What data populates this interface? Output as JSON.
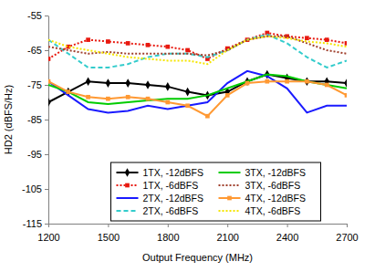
{
  "chart_data": {
    "type": "line",
    "x_label": "Output Frequency (MHz)",
    "y_label": "HD2 (dBFS/Hz)",
    "x": [
      1200,
      1300,
      1400,
      1500,
      1600,
      1700,
      1800,
      1900,
      2000,
      2100,
      2200,
      2300,
      2400,
      2500,
      2600,
      2700
    ],
    "xlim": [
      1200,
      2700
    ],
    "xticks": [
      1200,
      1500,
      1800,
      2100,
      2400,
      2700
    ],
    "ylim": [
      -115,
      -55
    ],
    "yticks": [
      -115,
      -105,
      -95,
      -85,
      -75,
      -65,
      -55
    ],
    "grid": false,
    "legend": "lower center",
    "series": [
      {
        "name": "1TX, -12dBFS",
        "color": "#000000",
        "marker": "diamond",
        "line_style": "solid",
        "values": [
          -80,
          -77,
          -74,
          -74.5,
          -74.5,
          -75,
          -75.5,
          -77,
          -78,
          -77,
          -74,
          -72,
          -73,
          -74,
          -74,
          -74.5
        ]
      },
      {
        "name": "1TX, -6dBFS",
        "color": "#e8190f",
        "marker": "square",
        "line_style": "dotted",
        "values": [
          -67.5,
          -64,
          -62,
          -62.5,
          -63,
          -63.5,
          -64,
          -65,
          -67.5,
          -64.5,
          -62,
          -60,
          -61,
          -61.5,
          -62,
          -63
        ]
      },
      {
        "name": "2TX, -12dBFS",
        "color": "#1a1aff",
        "line_style": "solid",
        "values": [
          -74,
          -78,
          -82,
          -83,
          -82.5,
          -81,
          -82,
          -81,
          -80,
          -74.5,
          -71,
          -72.5,
          -76,
          -83,
          -81,
          -81
        ]
      },
      {
        "name": "2TX, -6dBFS",
        "color": "#33cccc",
        "line_style": "dashed",
        "values": [
          -62,
          -66,
          -70,
          -70,
          -69,
          -67,
          -66,
          -66,
          -67,
          -65,
          -62,
          -60.5,
          -63,
          -67,
          -70,
          -68
        ]
      },
      {
        "name": "3TX, -12dBFS",
        "color": "#00cc00",
        "line_style": "solid",
        "values": [
          -75,
          -77,
          -80,
          -80.5,
          -80,
          -79.5,
          -79,
          -79,
          -78,
          -76,
          -74,
          -72,
          -72.5,
          -74,
          -75,
          -76
        ]
      },
      {
        "name": "3TX, -6dBFS",
        "color": "#a0402d",
        "line_style": "dotted",
        "values": [
          -64,
          -65,
          -66,
          -65.5,
          -66,
          -66,
          -66,
          -66,
          -66.5,
          -65,
          -62,
          -61,
          -61,
          -63,
          -65,
          -66
        ]
      },
      {
        "name": "4TX, -12dBFS",
        "color": "#ff9933",
        "marker": "square",
        "line_style": "solid",
        "values": [
          -74,
          -77,
          -78.5,
          -79,
          -78.5,
          -79,
          -80,
          -81,
          -84,
          -78,
          -74.5,
          -74,
          -74,
          -74,
          -75,
          -78
        ]
      },
      {
        "name": "4TX, -6dBFS",
        "color": "#f5e600",
        "line_style": "dotted",
        "values": [
          -62,
          -64,
          -65,
          -66,
          -67,
          -67.5,
          -68,
          -68,
          -69,
          -65,
          -62,
          -61,
          -61.5,
          -62.5,
          -63,
          -64
        ]
      }
    ]
  }
}
